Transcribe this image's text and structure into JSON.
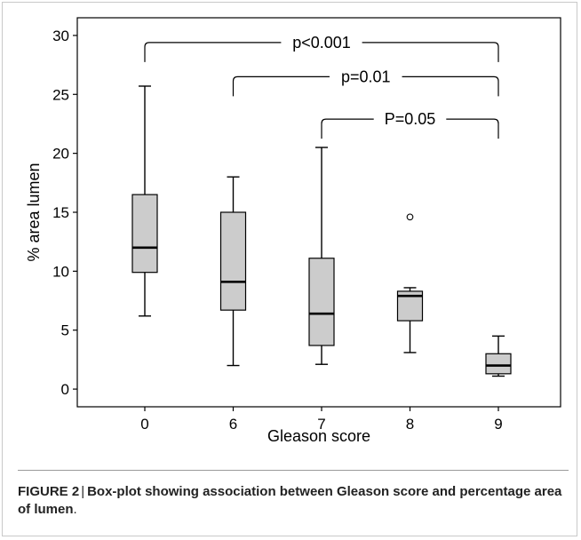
{
  "chart_data": {
    "type": "box",
    "xlabel": "Gleason score",
    "ylabel": "% area lumen",
    "categories": [
      "0",
      "6",
      "7",
      "8",
      "9"
    ],
    "ylim": [
      -1.5,
      31.5
    ],
    "yticks": [
      0,
      5,
      10,
      15,
      20,
      25,
      30
    ],
    "grid": false,
    "boxes": [
      {
        "category": "0",
        "whisker_low": 6.2,
        "q1": 9.9,
        "median": 12.0,
        "q3": 16.5,
        "whisker_high": 25.7,
        "outliers": []
      },
      {
        "category": "6",
        "whisker_low": 2.0,
        "q1": 6.7,
        "median": 9.1,
        "q3": 15.0,
        "whisker_high": 18.0,
        "outliers": []
      },
      {
        "category": "7",
        "whisker_low": 2.1,
        "q1": 3.7,
        "median": 6.4,
        "q3": 11.1,
        "whisker_high": 20.5,
        "outliers": []
      },
      {
        "category": "8",
        "whisker_low": 3.1,
        "q1": 5.8,
        "median": 7.9,
        "q3": 8.3,
        "whisker_high": 8.6,
        "outliers": [
          14.6
        ]
      },
      {
        "category": "9",
        "whisker_low": 1.1,
        "q1": 1.3,
        "median": 2.0,
        "q3": 3.0,
        "whisker_high": 4.5,
        "outliers": []
      }
    ],
    "annotations": [
      {
        "from": "0",
        "to": "9",
        "label": "p<0.001",
        "y": 29.4
      },
      {
        "from": "6",
        "to": "9",
        "label": "p=0.01",
        "y": 26.5
      },
      {
        "from": "7",
        "to": "9",
        "label": "P=0.05",
        "y": 22.9
      }
    ],
    "colors": {
      "box_fill": "#cccccc",
      "stroke": "#000000"
    }
  },
  "caption": {
    "label": "FIGURE 2",
    "separator": "|",
    "title": "Box-plot showing association between Gleason score and percentage area of lumen",
    "tail": "."
  }
}
